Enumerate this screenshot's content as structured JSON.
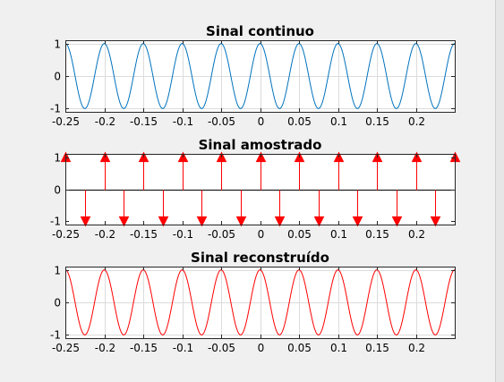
{
  "figure": {
    "background": "#f0f0f0",
    "axes_background": "#ffffff",
    "grid_color": "#dcdcdc"
  },
  "chart_data": [
    {
      "type": "line",
      "title": "Sinal continuo",
      "xlabel": "",
      "ylabel": "",
      "xlim": [
        -0.25,
        0.25
      ],
      "ylim": [
        -1.1,
        1.1
      ],
      "grid": true,
      "color": "#0072bd",
      "function": "cos(2*pi*20*t)",
      "frequency_hz": 20,
      "xticks": [
        -0.25,
        -0.2,
        -0.15,
        -0.1,
        -0.05,
        0,
        0.05,
        0.1,
        0.15,
        0.2
      ],
      "xtick_labels": [
        "-0.25",
        "-0.2",
        "-0.15",
        "-0.1",
        "-0.05",
        "0",
        "0.05",
        "0.1",
        "0.15",
        "0.2"
      ],
      "yticks": [
        -1,
        0,
        1
      ],
      "ytick_labels": [
        "-1",
        "0",
        "1"
      ]
    },
    {
      "type": "stem",
      "title": "Sinal amostrado",
      "xlabel": "",
      "ylabel": "",
      "xlim": [
        -0.25,
        0.25
      ],
      "ylim": [
        -1.1,
        1.1
      ],
      "grid": false,
      "color": "#ff0000",
      "marker": "triangle",
      "sample_interval": 0.025,
      "x": [
        -0.25,
        -0.225,
        -0.2,
        -0.175,
        -0.15,
        -0.125,
        -0.1,
        -0.075,
        -0.05,
        -0.025,
        0,
        0.025,
        0.05,
        0.075,
        0.1,
        0.125,
        0.15,
        0.175,
        0.2,
        0.225,
        0.25
      ],
      "y": [
        1,
        -1,
        1,
        -1,
        1,
        -1,
        1,
        -1,
        1,
        -1,
        1,
        -1,
        1,
        -1,
        1,
        -1,
        1,
        -1,
        1,
        -1,
        1
      ],
      "xticks": [
        -0.25,
        -0.2,
        -0.15,
        -0.1,
        -0.05,
        0,
        0.05,
        0.1,
        0.15,
        0.2
      ],
      "xtick_labels": [
        "-0.25",
        "-0.2",
        "-0.15",
        "-0.1",
        "-0.05",
        "0",
        "0.05",
        "0.1",
        "0.15",
        "0.2"
      ],
      "yticks": [
        -1,
        0,
        1
      ],
      "ytick_labels": [
        "-1",
        "0",
        "1"
      ]
    },
    {
      "type": "line",
      "title": "Sinal reconstruído",
      "xlabel": "",
      "ylabel": "",
      "xlim": [
        -0.25,
        0.25
      ],
      "ylim": [
        -1.1,
        1.1
      ],
      "grid": true,
      "color": "#ff0000",
      "function": "cos(2*pi*20*t)",
      "frequency_hz": 20,
      "xticks": [
        -0.25,
        -0.2,
        -0.15,
        -0.1,
        -0.05,
        0,
        0.05,
        0.1,
        0.15,
        0.2
      ],
      "xtick_labels": [
        "-0.25",
        "-0.2",
        "-0.15",
        "-0.1",
        "-0.05",
        "0",
        "0.05",
        "0.1",
        "0.15",
        "0.2"
      ],
      "yticks": [
        -1,
        0,
        1
      ],
      "ytick_labels": [
        "-1",
        "0",
        "1"
      ]
    }
  ]
}
